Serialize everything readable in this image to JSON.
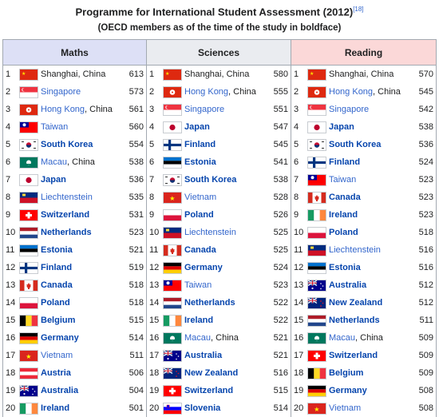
{
  "caption": "Programme for International Student Assessment (2012)",
  "caption_ref": "[18]",
  "subcaption": "(OECD members as of the time of the study in boldface)",
  "columns": [
    {
      "title": "Maths",
      "header_color": "#dde0f6",
      "rows": [
        {
          "rank": "1",
          "country": "Shanghai, China",
          "parts": [
            {
              "t": "Shanghai, China",
              "k": "plain"
            }
          ],
          "score": "613",
          "flag": "china",
          "oecd": false
        },
        {
          "rank": "2",
          "country": "Singapore",
          "parts": [
            {
              "t": "Singapore",
              "k": "link"
            }
          ],
          "score": "573",
          "flag": "singapore",
          "oecd": false
        },
        {
          "rank": "3",
          "country": "Hong Kong, China",
          "parts": [
            {
              "t": "Hong Kong",
              "k": "link"
            },
            {
              "t": ", China",
              "k": "plain"
            }
          ],
          "score": "561",
          "flag": "hongkong",
          "oecd": false
        },
        {
          "rank": "4",
          "country": "Taiwan",
          "parts": [
            {
              "t": "Taiwan",
              "k": "link"
            }
          ],
          "score": "560",
          "flag": "taiwan",
          "oecd": false
        },
        {
          "rank": "5",
          "country": "South Korea",
          "parts": [
            {
              "t": "South Korea",
              "k": "oecd"
            }
          ],
          "score": "554",
          "flag": "korea",
          "oecd": true
        },
        {
          "rank": "6",
          "country": "Macau, China",
          "parts": [
            {
              "t": "Macau",
              "k": "link"
            },
            {
              "t": ", China",
              "k": "plain"
            }
          ],
          "score": "538",
          "flag": "macau",
          "oecd": false
        },
        {
          "rank": "7",
          "country": "Japan",
          "parts": [
            {
              "t": "Japan",
              "k": "oecd"
            }
          ],
          "score": "536",
          "flag": "japan",
          "oecd": true
        },
        {
          "rank": "8",
          "country": "Liechtenstein",
          "parts": [
            {
              "t": "Liechtenstein",
              "k": "link"
            }
          ],
          "score": "535",
          "flag": "liechtenstein",
          "oecd": false
        },
        {
          "rank": "9",
          "country": "Switzerland",
          "parts": [
            {
              "t": "Switzerland",
              "k": "oecd"
            }
          ],
          "score": "531",
          "flag": "switzerland",
          "oecd": true
        },
        {
          "rank": "10",
          "country": "Netherlands",
          "parts": [
            {
              "t": "Netherlands",
              "k": "oecd"
            }
          ],
          "score": "523",
          "flag": "netherlands",
          "oecd": true
        },
        {
          "rank": "11",
          "country": "Estonia",
          "parts": [
            {
              "t": "Estonia",
              "k": "oecd"
            }
          ],
          "score": "521",
          "flag": "estonia",
          "oecd": true
        },
        {
          "rank": "12",
          "country": "Finland",
          "parts": [
            {
              "t": "Finland",
              "k": "oecd"
            }
          ],
          "score": "519",
          "flag": "finland",
          "oecd": true
        },
        {
          "rank": "13",
          "country": "Canada",
          "parts": [
            {
              "t": "Canada",
              "k": "oecd"
            }
          ],
          "score": "518",
          "flag": "canada",
          "oecd": true
        },
        {
          "rank": "14",
          "country": "Poland",
          "parts": [
            {
              "t": "Poland",
              "k": "oecd"
            }
          ],
          "score": "518",
          "flag": "poland",
          "oecd": true
        },
        {
          "rank": "15",
          "country": "Belgium",
          "parts": [
            {
              "t": "Belgium",
              "k": "oecd"
            }
          ],
          "score": "515",
          "flag": "belgium",
          "oecd": true
        },
        {
          "rank": "16",
          "country": "Germany",
          "parts": [
            {
              "t": "Germany",
              "k": "oecd"
            }
          ],
          "score": "514",
          "flag": "germany",
          "oecd": true
        },
        {
          "rank": "17",
          "country": "Vietnam",
          "parts": [
            {
              "t": "Vietnam",
              "k": "link"
            }
          ],
          "score": "511",
          "flag": "vietnam",
          "oecd": false
        },
        {
          "rank": "18",
          "country": "Austria",
          "parts": [
            {
              "t": "Austria",
              "k": "oecd"
            }
          ],
          "score": "506",
          "flag": "austria",
          "oecd": true
        },
        {
          "rank": "19",
          "country": "Australia",
          "parts": [
            {
              "t": "Australia",
              "k": "oecd"
            }
          ],
          "score": "504",
          "flag": "australia",
          "oecd": true
        },
        {
          "rank": "20",
          "country": "Ireland",
          "parts": [
            {
              "t": "Ireland",
              "k": "oecd"
            }
          ],
          "score": "501",
          "flag": "ireland",
          "oecd": true
        }
      ]
    },
    {
      "title": "Sciences",
      "header_color": "#eaecf0",
      "rows": [
        {
          "rank": "1",
          "country": "Shanghai, China",
          "parts": [
            {
              "t": "Shanghai, China",
              "k": "plain"
            }
          ],
          "score": "580",
          "flag": "china",
          "oecd": false
        },
        {
          "rank": "2",
          "country": "Hong Kong, China",
          "parts": [
            {
              "t": "Hong Kong",
              "k": "link"
            },
            {
              "t": ", China",
              "k": "plain"
            }
          ],
          "score": "555",
          "flag": "hongkong",
          "oecd": false
        },
        {
          "rank": "3",
          "country": "Singapore",
          "parts": [
            {
              "t": "Singapore",
              "k": "link"
            }
          ],
          "score": "551",
          "flag": "singapore",
          "oecd": false
        },
        {
          "rank": "4",
          "country": "Japan",
          "parts": [
            {
              "t": "Japan",
              "k": "oecd"
            }
          ],
          "score": "547",
          "flag": "japan",
          "oecd": true
        },
        {
          "rank": "5",
          "country": "Finland",
          "parts": [
            {
              "t": "Finland",
              "k": "oecd"
            }
          ],
          "score": "545",
          "flag": "finland",
          "oecd": true
        },
        {
          "rank": "6",
          "country": "Estonia",
          "parts": [
            {
              "t": "Estonia",
              "k": "oecd"
            }
          ],
          "score": "541",
          "flag": "estonia",
          "oecd": true
        },
        {
          "rank": "7",
          "country": "South Korea",
          "parts": [
            {
              "t": "South Korea",
              "k": "oecd"
            }
          ],
          "score": "538",
          "flag": "korea",
          "oecd": true
        },
        {
          "rank": "8",
          "country": "Vietnam",
          "parts": [
            {
              "t": "Vietnam",
              "k": "link"
            }
          ],
          "score": "528",
          "flag": "vietnam",
          "oecd": false
        },
        {
          "rank": "9",
          "country": "Poland",
          "parts": [
            {
              "t": "Poland",
              "k": "oecd"
            }
          ],
          "score": "526",
          "flag": "poland",
          "oecd": true
        },
        {
          "rank": "10",
          "country": "Liechtenstein",
          "parts": [
            {
              "t": "Liechtenstein",
              "k": "link"
            }
          ],
          "score": "525",
          "flag": "liechtenstein",
          "oecd": false
        },
        {
          "rank": "11",
          "country": "Canada",
          "parts": [
            {
              "t": "Canada",
              "k": "oecd"
            }
          ],
          "score": "525",
          "flag": "canada",
          "oecd": true
        },
        {
          "rank": "12",
          "country": "Germany",
          "parts": [
            {
              "t": "Germany",
              "k": "oecd"
            }
          ],
          "score": "524",
          "flag": "germany",
          "oecd": true
        },
        {
          "rank": "13",
          "country": "Taiwan",
          "parts": [
            {
              "t": "Taiwan",
              "k": "link"
            }
          ],
          "score": "523",
          "flag": "taiwan",
          "oecd": false
        },
        {
          "rank": "14",
          "country": "Netherlands",
          "parts": [
            {
              "t": "Netherlands",
              "k": "oecd"
            }
          ],
          "score": "522",
          "flag": "netherlands",
          "oecd": true
        },
        {
          "rank": "15",
          "country": "Ireland",
          "parts": [
            {
              "t": "Ireland",
              "k": "oecd"
            }
          ],
          "score": "522",
          "flag": "ireland",
          "oecd": true
        },
        {
          "rank": "16",
          "country": "Macau, China",
          "parts": [
            {
              "t": "Macau",
              "k": "link"
            },
            {
              "t": ", China",
              "k": "plain"
            }
          ],
          "score": "521",
          "flag": "macau",
          "oecd": false
        },
        {
          "rank": "17",
          "country": "Australia",
          "parts": [
            {
              "t": "Australia",
              "k": "oecd"
            }
          ],
          "score": "521",
          "flag": "australia",
          "oecd": true
        },
        {
          "rank": "18",
          "country": "New Zealand",
          "parts": [
            {
              "t": "New Zealand",
              "k": "oecd"
            }
          ],
          "score": "516",
          "flag": "newzealand",
          "oecd": true
        },
        {
          "rank": "19",
          "country": "Switzerland",
          "parts": [
            {
              "t": "Switzerland",
              "k": "oecd"
            }
          ],
          "score": "515",
          "flag": "switzerland",
          "oecd": true
        },
        {
          "rank": "20",
          "country": "Slovenia",
          "parts": [
            {
              "t": "Slovenia",
              "k": "oecd"
            }
          ],
          "score": "514",
          "flag": "slovenia",
          "oecd": true
        }
      ]
    },
    {
      "title": "Reading",
      "header_color": "#fbd8d8",
      "rows": [
        {
          "rank": "1",
          "country": "Shanghai, China",
          "parts": [
            {
              "t": "Shanghai, China",
              "k": "plain"
            }
          ],
          "score": "570",
          "flag": "china",
          "oecd": false
        },
        {
          "rank": "2",
          "country": "Hong Kong, China",
          "parts": [
            {
              "t": "Hong Kong",
              "k": "link"
            },
            {
              "t": ", China",
              "k": "plain"
            }
          ],
          "score": "545",
          "flag": "hongkong",
          "oecd": false
        },
        {
          "rank": "3",
          "country": "Singapore",
          "parts": [
            {
              "t": "Singapore",
              "k": "link"
            }
          ],
          "score": "542",
          "flag": "singapore",
          "oecd": false
        },
        {
          "rank": "4",
          "country": "Japan",
          "parts": [
            {
              "t": "Japan",
              "k": "oecd"
            }
          ],
          "score": "538",
          "flag": "japan",
          "oecd": true
        },
        {
          "rank": "5",
          "country": "South Korea",
          "parts": [
            {
              "t": "South Korea",
              "k": "oecd"
            }
          ],
          "score": "536",
          "flag": "korea",
          "oecd": true
        },
        {
          "rank": "6",
          "country": "Finland",
          "parts": [
            {
              "t": "Finland",
              "k": "oecd"
            }
          ],
          "score": "524",
          "flag": "finland",
          "oecd": true
        },
        {
          "rank": "7",
          "country": "Taiwan",
          "parts": [
            {
              "t": "Taiwan",
              "k": "link"
            }
          ],
          "score": "523",
          "flag": "taiwan",
          "oecd": false
        },
        {
          "rank": "8",
          "country": "Canada",
          "parts": [
            {
              "t": "Canada",
              "k": "oecd"
            }
          ],
          "score": "523",
          "flag": "canada",
          "oecd": true
        },
        {
          "rank": "9",
          "country": "Ireland",
          "parts": [
            {
              "t": "Ireland",
              "k": "oecd"
            }
          ],
          "score": "523",
          "flag": "ireland",
          "oecd": true
        },
        {
          "rank": "10",
          "country": "Poland",
          "parts": [
            {
              "t": "Poland",
              "k": "oecd"
            }
          ],
          "score": "518",
          "flag": "poland",
          "oecd": true
        },
        {
          "rank": "11",
          "country": "Liechtenstein",
          "parts": [
            {
              "t": "Liechtenstein",
              "k": "link"
            }
          ],
          "score": "516",
          "flag": "liechtenstein",
          "oecd": false
        },
        {
          "rank": "12",
          "country": "Estonia",
          "parts": [
            {
              "t": "Estonia",
              "k": "oecd"
            }
          ],
          "score": "516",
          "flag": "estonia",
          "oecd": true
        },
        {
          "rank": "13",
          "country": "Australia",
          "parts": [
            {
              "t": "Australia",
              "k": "oecd"
            }
          ],
          "score": "512",
          "flag": "australia",
          "oecd": true
        },
        {
          "rank": "14",
          "country": "New Zealand",
          "parts": [
            {
              "t": "New Zealand",
              "k": "oecd"
            }
          ],
          "score": "512",
          "flag": "newzealand",
          "oecd": true
        },
        {
          "rank": "15",
          "country": "Netherlands",
          "parts": [
            {
              "t": "Netherlands",
              "k": "oecd"
            }
          ],
          "score": "511",
          "flag": "netherlands",
          "oecd": true
        },
        {
          "rank": "16",
          "country": "Macau, China",
          "parts": [
            {
              "t": "Macau",
              "k": "link"
            },
            {
              "t": ", China",
              "k": "plain"
            }
          ],
          "score": "509",
          "flag": "macau",
          "oecd": false
        },
        {
          "rank": "17",
          "country": "Switzerland",
          "parts": [
            {
              "t": "Switzerland",
              "k": "oecd"
            }
          ],
          "score": "509",
          "flag": "switzerland",
          "oecd": true
        },
        {
          "rank": "18",
          "country": "Belgium",
          "parts": [
            {
              "t": "Belgium",
              "k": "oecd"
            }
          ],
          "score": "509",
          "flag": "belgium",
          "oecd": true
        },
        {
          "rank": "19",
          "country": "Germany",
          "parts": [
            {
              "t": "Germany",
              "k": "oecd"
            }
          ],
          "score": "508",
          "flag": "germany",
          "oecd": true
        },
        {
          "rank": "20",
          "country": "Vietnam",
          "parts": [
            {
              "t": "Vietnam",
              "k": "link"
            }
          ],
          "score": "508",
          "flag": "vietnam",
          "oecd": false
        }
      ]
    }
  ]
}
